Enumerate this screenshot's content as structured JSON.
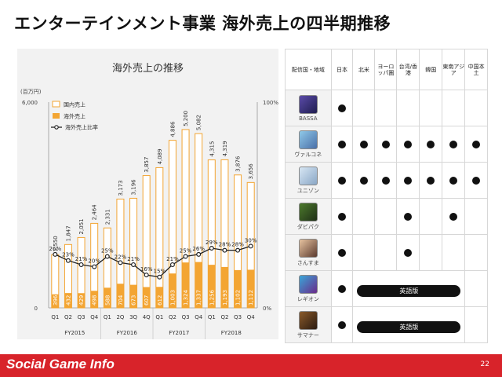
{
  "header": {
    "title": "エンターテインメント事業 海外売上の四半期推移"
  },
  "chart_data": {
    "type": "bar",
    "title": "海外売上の推移",
    "y_unit": "(百万円)",
    "ylim": [
      0,
      6000
    ],
    "y_ticks": [
      "6,000",
      "0"
    ],
    "y2lim": [
      0,
      100
    ],
    "y2_ticks": [
      "100%",
      "0%"
    ],
    "categories": [
      "Q1",
      "Q2",
      "Q3",
      "Q4",
      "Q1",
      "2Q",
      "3Q",
      "4Q",
      "Q1",
      "Q2",
      "Q3",
      "Q4",
      "Q1",
      "Q2",
      "Q3",
      "Q4"
    ],
    "groups": [
      {
        "label": "FY2015",
        "start": 0,
        "end": 3
      },
      {
        "label": "FY2016",
        "start": 4,
        "end": 7
      },
      {
        "label": "FY2017",
        "start": 8,
        "end": 11
      },
      {
        "label": "FY2018",
        "start": 12,
        "end": 15
      }
    ],
    "series": [
      {
        "name": "国内売上",
        "color": "#f3a533",
        "values": [
          1550,
          1847,
          2051,
          2464,
          2331,
          3173,
          3196,
          3857,
          4089,
          4886,
          5200,
          5082,
          4315,
          4319,
          3876,
          3656
        ],
        "labels": [
          "1,550",
          "1,847",
          "2,051",
          "2,464",
          "2,331",
          "3,173",
          "3,196",
          "3,857",
          "4,089",
          "4,886",
          "5,200",
          "5,082",
          "4,315",
          "4,319",
          "3,876",
          "3,656"
        ]
      },
      {
        "name": "海外売上",
        "color": "#f3a533",
        "values": [
          396,
          432,
          429,
          498,
          588,
          704,
          673,
          607,
          612,
          1003,
          1324,
          1337,
          1256,
          1193,
          1102,
          1112
        ],
        "labels": [
          "396",
          "432",
          "429",
          "498",
          "588",
          "704",
          "673",
          "607",
          "612",
          "1,003",
          "1,324",
          "1,337",
          "1,256",
          "1,193",
          "1,102",
          "1,112"
        ]
      },
      {
        "name": "海外売上比率",
        "color": "#222222",
        "values": [
          26,
          23,
          21,
          20,
          25,
          22,
          21,
          16,
          15,
          21,
          25,
          26,
          29,
          28,
          28,
          30
        ],
        "labels": [
          "26%",
          "23%",
          "21%",
          "20%",
          "25%",
          "22%",
          "21%",
          "16%",
          "15%",
          "21%",
          "25%",
          "26%",
          "29%",
          "28%",
          "28%",
          "30%"
        ]
      }
    ],
    "legend_position": "top-left"
  },
  "table": {
    "header": {
      "distribution": "配信国・地域",
      "regions": [
        "日本",
        "北米",
        "ヨーロッパ圏",
        "台湾/香港",
        "韓国",
        "東南アジア",
        "中国本土"
      ]
    },
    "rows": [
      {
        "name": "BASSA",
        "icon": "bassa-icon",
        "colors": [
          "#5a4aa8",
          "#1f1d4f"
        ],
        "cells": [
          true,
          false,
          false,
          false,
          false,
          false,
          false
        ]
      },
      {
        "name": "ヴァルコネ",
        "icon": "valkone-icon",
        "colors": [
          "#8fc9e8",
          "#4a6fa8"
        ],
        "cells": [
          true,
          true,
          true,
          true,
          true,
          true,
          true
        ]
      },
      {
        "name": "ユニゾン",
        "icon": "unison-icon",
        "colors": [
          "#d7e6f3",
          "#8aa7c6"
        ],
        "cells": [
          true,
          true,
          true,
          true,
          true,
          true,
          true
        ]
      },
      {
        "name": "ダビパク",
        "icon": "derby-pack-icon",
        "colors": [
          "#4c7a2c",
          "#1f2f17"
        ],
        "cells": [
          true,
          false,
          false,
          true,
          false,
          true,
          false
        ]
      },
      {
        "name": "さんすま",
        "icon": "sansuma-icon",
        "colors": [
          "#e7c3a0",
          "#5b3a2e"
        ],
        "cells": [
          true,
          false,
          false,
          true,
          false,
          false,
          false
        ]
      },
      {
        "name": "レギオン",
        "icon": "legion-icon",
        "colors": [
          "#3aa6d8",
          "#6a2a8a"
        ],
        "cells": [
          true,
          false,
          false,
          false,
          false,
          false,
          false
        ],
        "span_label": "英語版"
      },
      {
        "name": "サマナー",
        "icon": "summoner-icon",
        "colors": [
          "#8a5a2a",
          "#2a1a10"
        ],
        "cells": [
          true,
          false,
          false,
          false,
          false,
          false,
          false
        ],
        "span_label": "英語版"
      }
    ]
  },
  "footer": {
    "brand": "Social Game Info",
    "page_number": "22"
  }
}
